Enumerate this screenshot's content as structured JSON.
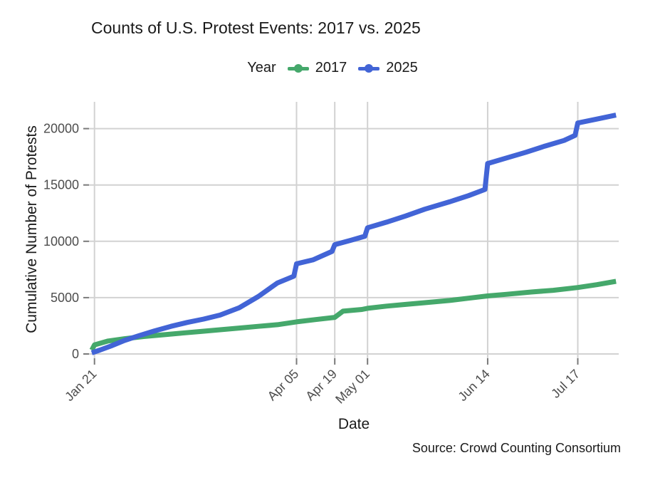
{
  "title": "Counts of U.S. Protest Events: 2017 vs. 2025",
  "source": "Source: Crowd Counting Consortium",
  "legend": {
    "label": "Year",
    "items": [
      {
        "label": "2017",
        "color": "#45a86b"
      },
      {
        "label": "2025",
        "color": "#4264d6"
      }
    ]
  },
  "colors": {
    "grid": "#d2d2d2",
    "tick_mark": "#7a7a7a",
    "tick_label": "#4d4d4d",
    "text": "#1a1a1a",
    "background": "#ffffff"
  },
  "chart_data": {
    "type": "line",
    "title": "Counts of U.S. Protest Events: 2017 vs. 2025",
    "xlabel": "Date",
    "ylabel": "Cumulative Number of Protests",
    "legend_title": "Year",
    "legend_position": "top",
    "grid": true,
    "x_tick_labels": [
      "Jan 21",
      "Apr 05",
      "Apr 19",
      "May 01",
      "Jun 14",
      "Jul 17"
    ],
    "y_ticks": [
      0,
      5000,
      10000,
      15000,
      20000
    ],
    "x_range": [
      "Jan 20",
      "Jul 31"
    ],
    "ylim": [
      0,
      22300
    ],
    "series": [
      {
        "name": "2017",
        "color": "#45a86b",
        "points": [
          [
            "Jan 20",
            350
          ],
          [
            "Jan 21",
            800
          ],
          [
            "Jan 26",
            1150
          ],
          [
            "Feb 01",
            1350
          ],
          [
            "Feb 08",
            1550
          ],
          [
            "Feb 15",
            1700
          ],
          [
            "Feb 22",
            1850
          ],
          [
            "Mar 01",
            2000
          ],
          [
            "Mar 08",
            2150
          ],
          [
            "Mar 15",
            2300
          ],
          [
            "Mar 22",
            2450
          ],
          [
            "Mar 29",
            2600
          ],
          [
            "Apr 05",
            2850
          ],
          [
            "Apr 12",
            3050
          ],
          [
            "Apr 19",
            3250
          ],
          [
            "Apr 22",
            3800
          ],
          [
            "Apr 29",
            3950
          ],
          [
            "May 01",
            4050
          ],
          [
            "May 08",
            4250
          ],
          [
            "May 15",
            4400
          ],
          [
            "May 22",
            4550
          ],
          [
            "May 31",
            4750
          ],
          [
            "Jun 07",
            4950
          ],
          [
            "Jun 14",
            5150
          ],
          [
            "Jun 21",
            5300
          ],
          [
            "Jun 30",
            5500
          ],
          [
            "Jul 08",
            5650
          ],
          [
            "Jul 17",
            5900
          ],
          [
            "Jul 24",
            6150
          ],
          [
            "Jul 31",
            6450
          ]
        ]
      },
      {
        "name": "2025",
        "color": "#4264d6",
        "points": [
          [
            "Jan 20",
            100
          ],
          [
            "Jan 23",
            350
          ],
          [
            "Jan 27",
            700
          ],
          [
            "Feb 01",
            1200
          ],
          [
            "Feb 06",
            1600
          ],
          [
            "Feb 12",
            2050
          ],
          [
            "Feb 18",
            2450
          ],
          [
            "Feb 24",
            2800
          ],
          [
            "Mar 02",
            3100
          ],
          [
            "Mar 08",
            3450
          ],
          [
            "Mar 15",
            4100
          ],
          [
            "Mar 22",
            5100
          ],
          [
            "Mar 29",
            6300
          ],
          [
            "Apr 04",
            6900
          ],
          [
            "Apr 05",
            8000
          ],
          [
            "Apr 11",
            8350
          ],
          [
            "Apr 18",
            9100
          ],
          [
            "Apr 19",
            9700
          ],
          [
            "Apr 25",
            10100
          ],
          [
            "Apr 30",
            10450
          ],
          [
            "May 01",
            11200
          ],
          [
            "May 08",
            11700
          ],
          [
            "May 15",
            12250
          ],
          [
            "May 22",
            12850
          ],
          [
            "May 31",
            13500
          ],
          [
            "Jun 07",
            14050
          ],
          [
            "Jun 13",
            14600
          ],
          [
            "Jun 14",
            16900
          ],
          [
            "Jun 21",
            17400
          ],
          [
            "Jun 28",
            17900
          ],
          [
            "Jul 05",
            18450
          ],
          [
            "Jul 12",
            18950
          ],
          [
            "Jul 16",
            19400
          ],
          [
            "Jul 17",
            20500
          ],
          [
            "Jul 24",
            20850
          ],
          [
            "Jul 31",
            21200
          ]
        ]
      }
    ]
  }
}
